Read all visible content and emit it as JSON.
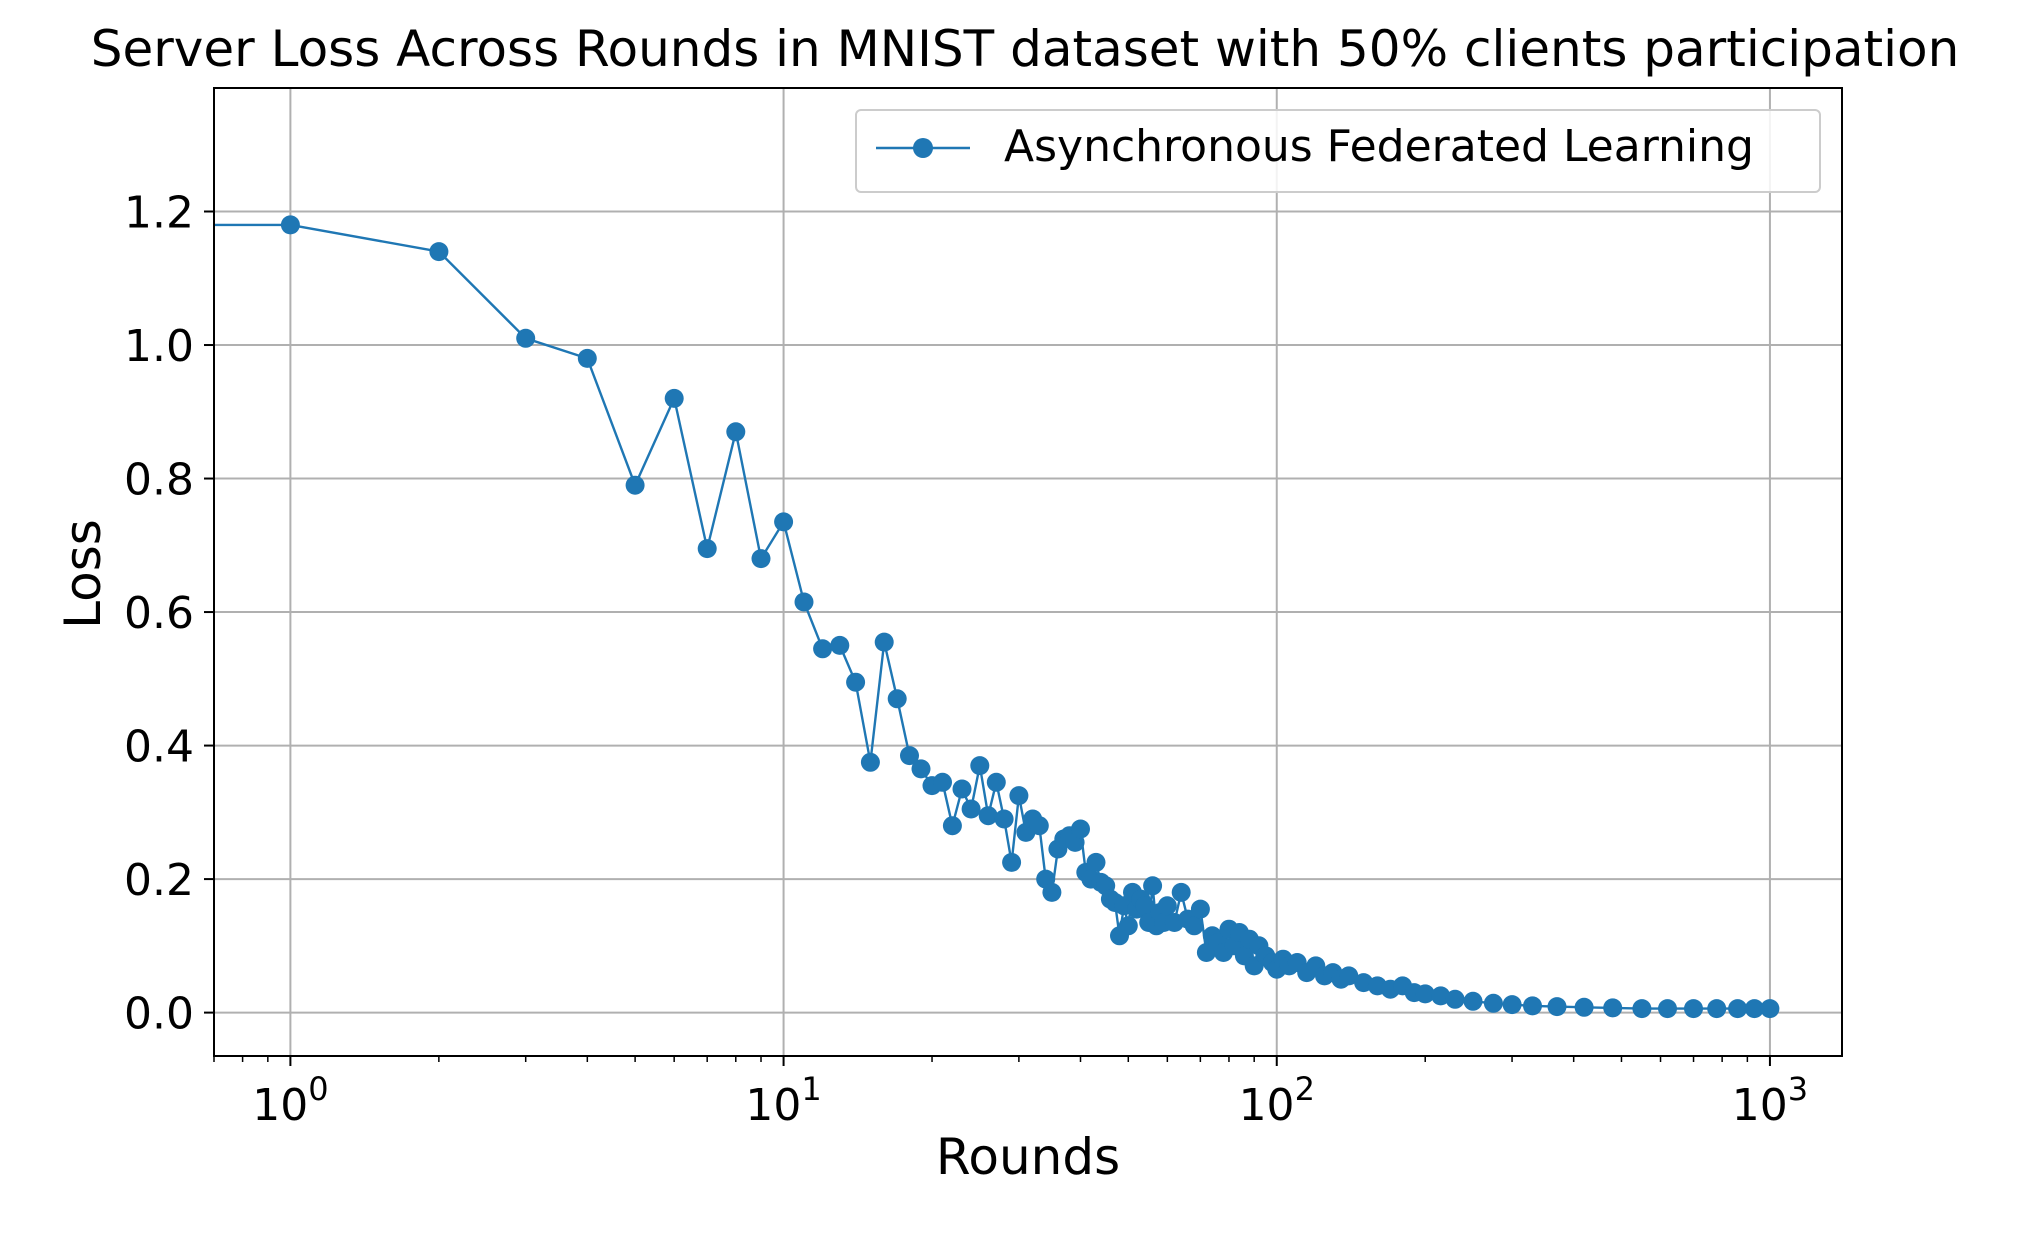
{
  "chart_data": {
    "type": "line",
    "title": "Server Loss Across Rounds in MNIST dataset with 50% clients participation",
    "xlabel": "Rounds",
    "ylabel": "Loss",
    "x_scale": "log",
    "xlim": [
      0.7,
      1400
    ],
    "ylim": [
      -0.065,
      1.385
    ],
    "x_ticks": [
      {
        "value": 1,
        "base": "10",
        "exp": "0"
      },
      {
        "value": 10,
        "base": "10",
        "exp": "1"
      },
      {
        "value": 100,
        "base": "10",
        "exp": "2"
      },
      {
        "value": 1000,
        "base": "10",
        "exp": "3"
      }
    ],
    "y_ticks": [
      {
        "value": 0.0,
        "label": "0.0"
      },
      {
        "value": 0.2,
        "label": "0.2"
      },
      {
        "value": 0.4,
        "label": "0.4"
      },
      {
        "value": 0.6,
        "label": "0.6"
      },
      {
        "value": 0.8,
        "label": "0.8"
      },
      {
        "value": 1.0,
        "label": "1.0"
      },
      {
        "value": 1.2,
        "label": "1.2"
      }
    ],
    "grid": true,
    "legend_position": "top-right",
    "series": [
      {
        "name": "Asynchronous Federated Learning",
        "color": "#1f77b4",
        "marker": "circle",
        "points": [
          [
            0,
            1.18
          ],
          [
            1,
            1.18
          ],
          [
            2,
            1.14
          ],
          [
            3,
            1.01
          ],
          [
            4,
            0.98
          ],
          [
            5,
            0.79
          ],
          [
            6,
            0.92
          ],
          [
            7,
            0.695
          ],
          [
            8,
            0.87
          ],
          [
            9,
            0.68
          ],
          [
            10,
            0.735
          ],
          [
            11,
            0.615
          ],
          [
            12,
            0.545
          ],
          [
            13,
            0.55
          ],
          [
            14,
            0.495
          ],
          [
            15,
            0.375
          ],
          [
            16,
            0.555
          ],
          [
            17,
            0.47
          ],
          [
            18,
            0.385
          ],
          [
            19,
            0.365
          ],
          [
            20,
            0.34
          ],
          [
            21,
            0.345
          ],
          [
            22,
            0.28
          ],
          [
            23,
            0.335
          ],
          [
            24,
            0.305
          ],
          [
            25,
            0.37
          ],
          [
            26,
            0.295
          ],
          [
            27,
            0.345
          ],
          [
            28,
            0.29
          ],
          [
            29,
            0.225
          ],
          [
            30,
            0.325
          ],
          [
            31,
            0.27
          ],
          [
            32,
            0.29
          ],
          [
            33,
            0.28
          ],
          [
            34,
            0.2
          ],
          [
            35,
            0.18
          ],
          [
            36,
            0.245
          ],
          [
            37,
            0.26
          ],
          [
            38,
            0.265
          ],
          [
            39,
            0.255
          ],
          [
            40,
            0.275
          ],
          [
            41,
            0.21
          ],
          [
            42,
            0.2
          ],
          [
            43,
            0.225
          ],
          [
            44,
            0.195
          ],
          [
            45,
            0.19
          ],
          [
            46,
            0.17
          ],
          [
            47,
            0.165
          ],
          [
            48,
            0.115
          ],
          [
            49,
            0.16
          ],
          [
            50,
            0.13
          ],
          [
            51,
            0.18
          ],
          [
            52,
            0.155
          ],
          [
            53,
            0.17
          ],
          [
            54,
            0.16
          ],
          [
            55,
            0.135
          ],
          [
            56,
            0.19
          ],
          [
            57,
            0.13
          ],
          [
            58,
            0.15
          ],
          [
            59,
            0.135
          ],
          [
            60,
            0.16
          ],
          [
            62,
            0.135
          ],
          [
            64,
            0.18
          ],
          [
            66,
            0.14
          ],
          [
            68,
            0.13
          ],
          [
            70,
            0.155
          ],
          [
            72,
            0.09
          ],
          [
            74,
            0.115
          ],
          [
            76,
            0.105
          ],
          [
            78,
            0.09
          ],
          [
            80,
            0.125
          ],
          [
            82,
            0.1
          ],
          [
            84,
            0.12
          ],
          [
            86,
            0.085
          ],
          [
            88,
            0.11
          ],
          [
            90,
            0.07
          ],
          [
            92,
            0.1
          ],
          [
            95,
            0.085
          ],
          [
            98,
            0.075
          ],
          [
            100,
            0.065
          ],
          [
            103,
            0.08
          ],
          [
            106,
            0.07
          ],
          [
            110,
            0.075
          ],
          [
            115,
            0.06
          ],
          [
            120,
            0.07
          ],
          [
            125,
            0.055
          ],
          [
            130,
            0.06
          ],
          [
            135,
            0.05
          ],
          [
            140,
            0.055
          ],
          [
            150,
            0.045
          ],
          [
            160,
            0.04
          ],
          [
            170,
            0.035
          ],
          [
            180,
            0.04
          ],
          [
            190,
            0.03
          ],
          [
            200,
            0.028
          ],
          [
            215,
            0.025
          ],
          [
            230,
            0.02
          ],
          [
            250,
            0.017
          ],
          [
            275,
            0.014
          ],
          [
            300,
            0.012
          ],
          [
            330,
            0.01
          ],
          [
            370,
            0.009
          ],
          [
            420,
            0.008
          ],
          [
            480,
            0.007
          ],
          [
            550,
            0.006
          ],
          [
            620,
            0.006
          ],
          [
            700,
            0.006
          ],
          [
            780,
            0.006
          ],
          [
            860,
            0.006
          ],
          [
            930,
            0.006
          ],
          [
            1000,
            0.006
          ]
        ]
      }
    ]
  }
}
